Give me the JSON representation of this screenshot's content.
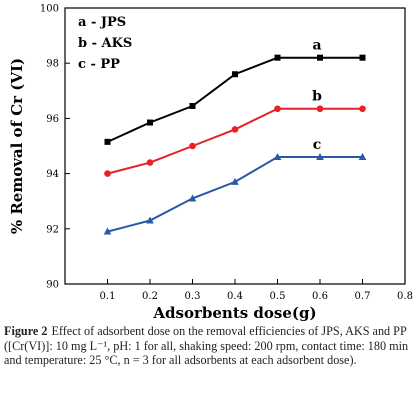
{
  "chart_data": {
    "type": "line",
    "title": "",
    "xlabel": "Adsorbents dose(g)",
    "ylabel": "% Removal of Cr (VI)",
    "xlim": [
      0.0,
      0.8
    ],
    "ylim": [
      90,
      100
    ],
    "x_ticks": [
      "0.1",
      "0.2",
      "0.3",
      "0.4",
      "0.5",
      "0.6",
      "0.7",
      "0.8"
    ],
    "y_ticks": [
      "90",
      "92",
      "94",
      "96",
      "98",
      "100"
    ],
    "grid": false,
    "legend_position": "top-left",
    "legend": [
      "a - JPS",
      "b - AKS",
      "c - PP"
    ],
    "x": [
      0.1,
      0.2,
      0.3,
      0.4,
      0.5,
      0.6,
      0.7
    ],
    "series": [
      {
        "label": "a",
        "marker": "square",
        "color": "#000000",
        "values": [
          95.15,
          95.85,
          96.45,
          97.6,
          98.2,
          98.2,
          98.2
        ]
      },
      {
        "label": "b",
        "marker": "circle",
        "color": "#e8202a",
        "values": [
          94.0,
          94.4,
          95.0,
          95.6,
          96.35,
          96.35,
          96.35
        ]
      },
      {
        "label": "c",
        "marker": "triangle",
        "color": "#2a58a8",
        "values": [
          91.9,
          92.3,
          93.1,
          93.7,
          94.6,
          94.6,
          94.6
        ]
      }
    ]
  },
  "caption": {
    "figure_label": "Figure 2",
    "text": "Effect of adsorbent dose on the removal efficiencies of JPS, AKS and PP ([Cr(VI)]: 10 mg L⁻¹, pH: 1 for all, shaking speed: 200 rpm, contact time: 180 min and temperature: 25 °C, n = 3 for all adsorbents at each adsorbent dose)."
  }
}
